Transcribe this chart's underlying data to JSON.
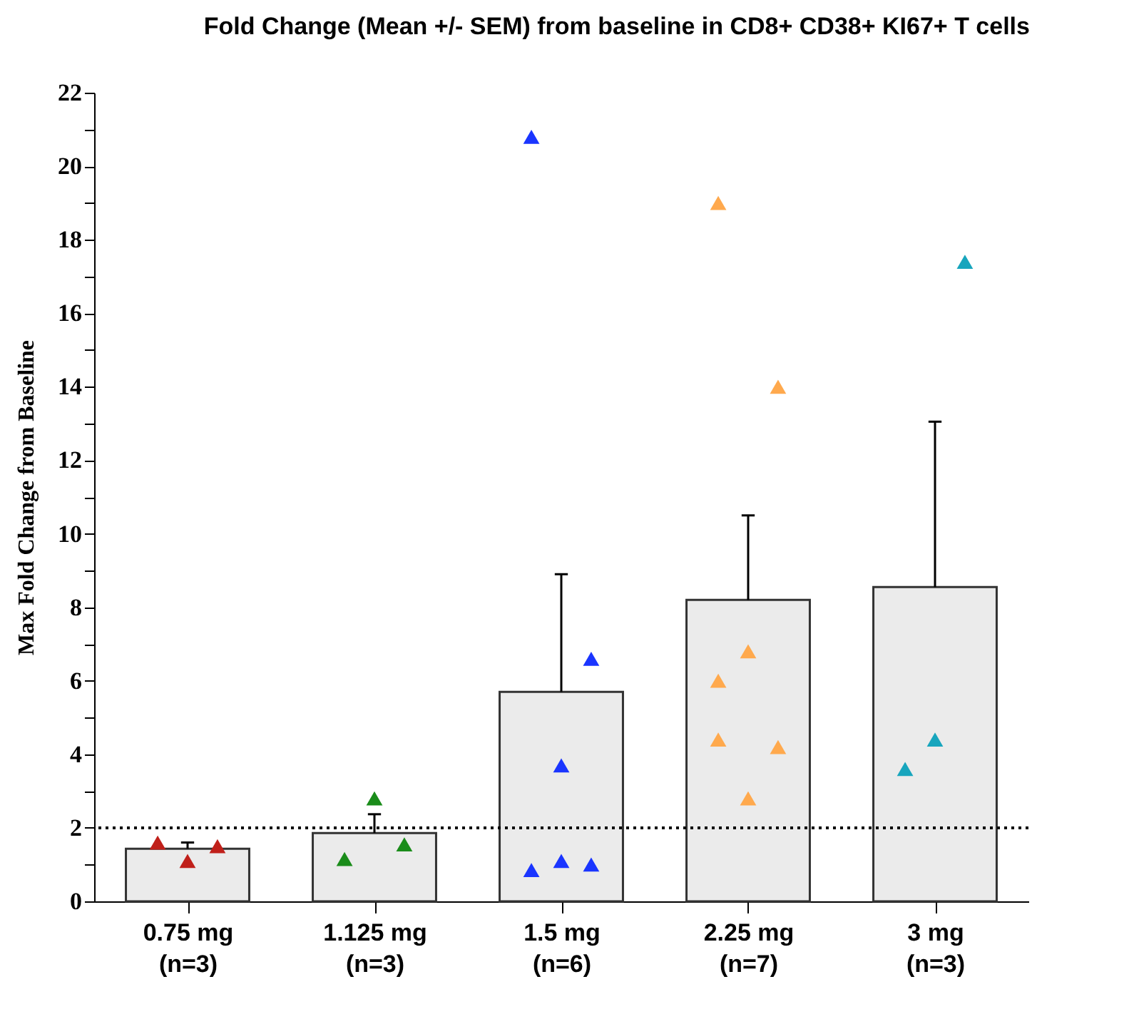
{
  "chart_data": {
    "type": "bar",
    "title": "Fold Change (Mean +/- SEM) from baseline in CD8+ CD38+ KI67+ T cells",
    "ylabel": "Max Fold Change from Baseline",
    "categories": [
      "0.75 mg\n(n=3)",
      "1.125 mg\n(n=3)",
      "1.5 mg\n(n=6)",
      "2.25 mg\n(n=7)",
      "3 mg\n(n=3)"
    ],
    "series": [
      {
        "color": "#ebebeb",
        "values": [
          1.43,
          1.86,
          5.7,
          8.2,
          8.55
        ],
        "errors": [
          [
            1.43,
            1.6
          ],
          [
            1.86,
            2.37
          ],
          [
            5.7,
            8.9
          ],
          [
            8.2,
            10.5
          ],
          [
            8.55,
            13.05
          ]
        ]
      },
      {
        "type": "scatter",
        "color": "#c0201a",
        "x": [
          "0.75 mg\n(n=3)",
          "0.75 mg\n(n=3)",
          "0.75 mg\n(n=3)"
        ],
        "values": [
          1.6,
          1.1,
          1.5
        ]
      },
      {
        "type": "scatter",
        "color": "#1a8c1a",
        "x": [
          "1.125 mg\n(n=3)",
          "1.125 mg\n(n=3)",
          "1.125 mg\n(n=3)"
        ],
        "values": [
          1.15,
          2.8,
          1.55
        ]
      },
      {
        "type": "scatter",
        "color": "#1a35ff",
        "x": [
          "1.5 mg\n(n=6)",
          "1.5 mg\n(n=6)",
          "1.5 mg\n(n=6)",
          "1.5 mg\n(n=6)",
          "1.5 mg\n(n=6)",
          "1.5 mg\n(n=6)"
        ],
        "values": [
          0.85,
          3.7,
          1.0,
          20.8,
          1.1,
          6.6
        ]
      },
      {
        "type": "scatter",
        "color": "#ffa94d",
        "x": [
          "2.25 mg\n(n=7)",
          "2.25 mg\n(n=7)",
          "2.25 mg\n(n=7)",
          "2.25 mg\n(n=7)",
          "2.25 mg\n(n=7)",
          "2.25 mg\n(n=7)",
          "2.25 mg\n(n=7)"
        ],
        "values": [
          4.4,
          2.8,
          4.2,
          6.0,
          6.8,
          14.0,
          19.0
        ]
      },
      {
        "type": "scatter",
        "color": "#17a5bd",
        "x": [
          "3 mg\n(n=3)",
          "3 mg\n(n=3)",
          "3 mg\n(n=3)"
        ],
        "values": [
          3.6,
          4.4,
          17.4
        ]
      }
    ],
    "ylim": [
      0,
      22
    ],
    "yticks": [
      0,
      {
        "value": 1,
        "label": null
      },
      2,
      {
        "value": 3,
        "label": null
      },
      4,
      {
        "value": 5,
        "label": null
      },
      6,
      {
        "value": 7,
        "label": null
      },
      8,
      {
        "value": 9,
        "label": null
      },
      10,
      {
        "value": 11,
        "label": null
      },
      12,
      {
        "value": 13,
        "label": null
      },
      14,
      {
        "value": 15,
        "label": null
      },
      16,
      {
        "value": 17,
        "label": null
      },
      18,
      {
        "value": 19,
        "label": null
      },
      20,
      {
        "value": 21,
        "label": null
      },
      22
    ],
    "ref_lines": [
      {
        "axis": "y",
        "value": 2,
        "line_style": "dotted"
      }
    ],
    "marker": "triangle",
    "grid": false
  }
}
